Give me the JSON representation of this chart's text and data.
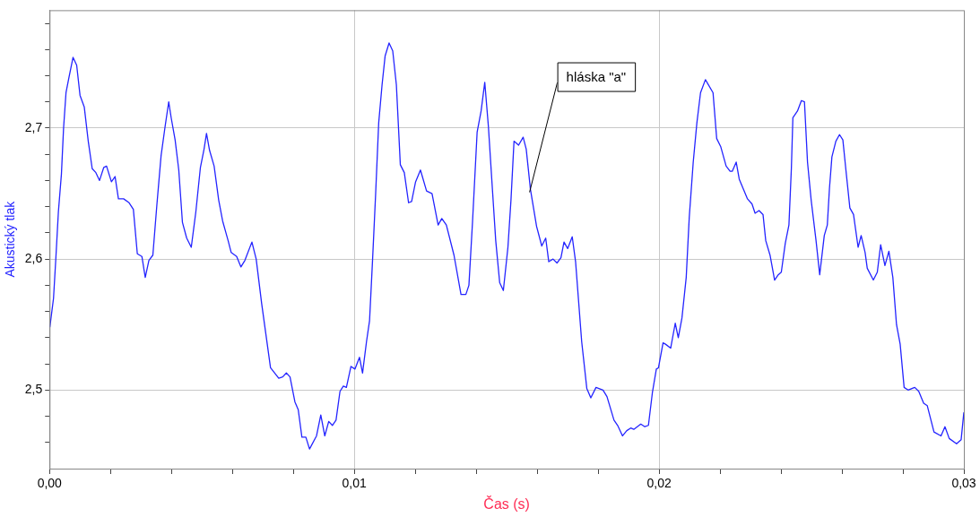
{
  "chart_data": {
    "type": "line",
    "xlabel": "Čas (s)",
    "ylabel": "Akustický tlak",
    "x": [
      1e-05,
      0.00013,
      0.00021,
      0.00029,
      0.00039,
      0.00046,
      0.00054,
      0.00064,
      0.00077,
      0.00089,
      0.001,
      0.00114,
      0.00127,
      0.0014,
      0.00152,
      0.00164,
      0.00178,
      0.00187,
      0.00203,
      0.00215,
      0.00226,
      0.00243,
      0.00261,
      0.00275,
      0.00288,
      0.00303,
      0.00314,
      0.00326,
      0.00339,
      0.00352,
      0.00366,
      0.00379,
      0.00391,
      0.00399,
      0.00412,
      0.00424,
      0.00436,
      0.0045,
      0.00465,
      0.0048,
      0.00495,
      0.00507,
      0.00515,
      0.00525,
      0.0054,
      0.00555,
      0.00568,
      0.00586,
      0.00596,
      0.00614,
      0.00628,
      0.00641,
      0.00664,
      0.00678,
      0.00696,
      0.00712,
      0.00725,
      0.00752,
      0.00765,
      0.00777,
      0.00789,
      0.00805,
      0.00816,
      0.00828,
      0.00841,
      0.00853,
      0.00876,
      0.0089,
      0.00903,
      0.00916,
      0.00928,
      0.0094,
      0.00953,
      0.00964,
      0.00974,
      0.00989,
      0.01002,
      0.01017,
      0.01027,
      0.0104,
      0.0105,
      0.0106,
      0.0107,
      0.0108,
      0.01091,
      0.01101,
      0.01114,
      0.01126,
      0.01138,
      0.01151,
      0.01164,
      0.01178,
      0.01188,
      0.01201,
      0.01217,
      0.01237,
      0.01255,
      0.01275,
      0.01287,
      0.01302,
      0.01327,
      0.0135,
      0.01366,
      0.01376,
      0.01388,
      0.01403,
      0.01416,
      0.01428,
      0.0144,
      0.01454,
      0.01464,
      0.01477,
      0.01489,
      0.01504,
      0.01514,
      0.01524,
      0.01539,
      0.01554,
      0.01564,
      0.01578,
      0.01598,
      0.01615,
      0.01628,
      0.01638,
      0.01652,
      0.01665,
      0.01678,
      0.01688,
      0.017,
      0.01715,
      0.01726,
      0.01746,
      0.01763,
      0.01776,
      0.01793,
      0.01816,
      0.01829,
      0.01852,
      0.01864,
      0.0188,
      0.01894,
      0.01907,
      0.01917,
      0.0194,
      0.01953,
      0.01965,
      0.01978,
      0.01991,
      0.01998,
      0.02013,
      0.02021,
      0.02038,
      0.02053,
      0.02063,
      0.02075,
      0.02089,
      0.02099,
      0.02112,
      0.02124,
      0.02136,
      0.02152,
      0.02177,
      0.02189,
      0.02202,
      0.0222,
      0.02233,
      0.0224,
      0.02253,
      0.02263,
      0.0229,
      0.02305,
      0.02315,
      0.02328,
      0.02341,
      0.0235,
      0.02364,
      0.02379,
      0.02391,
      0.02401,
      0.02414,
      0.02426,
      0.02434,
      0.02439,
      0.02454,
      0.02467,
      0.02477,
      0.02487,
      0.02499,
      0.02515,
      0.02527,
      0.02542,
      0.02552,
      0.02559,
      0.02567,
      0.0258,
      0.02592,
      0.02603,
      0.02613,
      0.02626,
      0.02638,
      0.02653,
      0.02663,
      0.02676,
      0.02683,
      0.02703,
      0.02716,
      0.02727,
      0.02741,
      0.02754,
      0.02767,
      0.02779,
      0.02791,
      0.02804,
      0.02817,
      0.02839,
      0.02852,
      0.02868,
      0.0288,
      0.02902,
      0.02925,
      0.02938,
      0.02952,
      0.02976,
      0.02991,
      0.03
    ],
    "series": [
      {
        "color": "#2424ff",
        "values": [
          2.548,
          2.57,
          2.602,
          2.636,
          2.665,
          2.7,
          2.727,
          2.739,
          2.754,
          2.748,
          2.725,
          2.716,
          2.69,
          2.669,
          2.666,
          2.66,
          2.67,
          2.671,
          2.659,
          2.663,
          2.646,
          2.646,
          2.643,
          2.638,
          2.604,
          2.602,
          2.586,
          2.599,
          2.603,
          2.641,
          2.679,
          2.701,
          2.72,
          2.708,
          2.691,
          2.668,
          2.628,
          2.616,
          2.609,
          2.636,
          2.67,
          2.684,
          2.696,
          2.683,
          2.671,
          2.645,
          2.629,
          2.614,
          2.605,
          2.602,
          2.594,
          2.599,
          2.613,
          2.6,
          2.566,
          2.539,
          2.517,
          2.509,
          2.51,
          2.513,
          2.51,
          2.491,
          2.485,
          2.464,
          2.464,
          2.455,
          2.465,
          2.481,
          2.465,
          2.476,
          2.473,
          2.477,
          2.499,
          2.503,
          2.502,
          2.518,
          2.516,
          2.525,
          2.513,
          2.537,
          2.553,
          2.6,
          2.65,
          2.704,
          2.733,
          2.755,
          2.765,
          2.759,
          2.733,
          2.672,
          2.666,
          2.643,
          2.644,
          2.659,
          2.668,
          2.652,
          2.65,
          2.626,
          2.631,
          2.626,
          2.603,
          2.573,
          2.573,
          2.58,
          2.629,
          2.697,
          2.713,
          2.735,
          2.701,
          2.65,
          2.614,
          2.582,
          2.576,
          2.609,
          2.645,
          2.69,
          2.687,
          2.693,
          2.684,
          2.653,
          2.625,
          2.61,
          2.616,
          2.598,
          2.6,
          2.597,
          2.601,
          2.613,
          2.608,
          2.617,
          2.598,
          2.537,
          2.501,
          2.494,
          2.502,
          2.5,
          2.495,
          2.477,
          2.473,
          2.465,
          2.469,
          2.471,
          2.47,
          2.474,
          2.472,
          2.473,
          2.498,
          2.516,
          2.517,
          2.536,
          2.535,
          2.532,
          2.551,
          2.54,
          2.555,
          2.586,
          2.632,
          2.674,
          2.704,
          2.727,
          2.737,
          2.727,
          2.692,
          2.686,
          2.671,
          2.667,
          2.667,
          2.674,
          2.661,
          2.646,
          2.642,
          2.635,
          2.637,
          2.634,
          2.614,
          2.603,
          2.584,
          2.588,
          2.59,
          2.612,
          2.626,
          2.669,
          2.708,
          2.713,
          2.721,
          2.72,
          2.674,
          2.645,
          2.614,
          2.588,
          2.618,
          2.626,
          2.654,
          2.678,
          2.69,
          2.695,
          2.691,
          2.668,
          2.639,
          2.634,
          2.609,
          2.618,
          2.605,
          2.593,
          2.584,
          2.59,
          2.611,
          2.595,
          2.606,
          2.586,
          2.55,
          2.535,
          2.502,
          2.5,
          2.502,
          2.499,
          2.49,
          2.488,
          2.468,
          2.465,
          2.472,
          2.463,
          2.459,
          2.462,
          2.483
        ]
      }
    ],
    "xlim": [
      0,
      0.03
    ],
    "xticks": [
      {
        "value": 0,
        "label": "0,00"
      },
      {
        "value": 0.002,
        "label": null
      },
      {
        "value": 0.004,
        "label": null
      },
      {
        "value": 0.006,
        "label": null
      },
      {
        "value": 0.008,
        "label": null
      },
      {
        "value": 0.01,
        "label": "0,01"
      },
      {
        "value": 0.012,
        "label": null
      },
      {
        "value": 0.014,
        "label": null
      },
      {
        "value": 0.016,
        "label": null
      },
      {
        "value": 0.018,
        "label": null
      },
      {
        "value": 0.02,
        "label": "0,02"
      },
      {
        "value": 0.022,
        "label": null
      },
      {
        "value": 0.024,
        "label": null
      },
      {
        "value": 0.026,
        "label": null
      },
      {
        "value": 0.028,
        "label": null
      },
      {
        "value": 0.03,
        "label": "0,03"
      }
    ],
    "ylim": [
      2.44,
      2.79
    ],
    "yticks": [
      {
        "value": 2.46,
        "label": null
      },
      {
        "value": 2.48,
        "label": null
      },
      {
        "value": 2.5,
        "label": "2,5"
      },
      {
        "value": 2.52,
        "label": null
      },
      {
        "value": 2.54,
        "label": null
      },
      {
        "value": 2.56,
        "label": null
      },
      {
        "value": 2.58,
        "label": null
      },
      {
        "value": 2.6,
        "label": "2,6"
      },
      {
        "value": 2.62,
        "label": null
      },
      {
        "value": 2.64,
        "label": null
      },
      {
        "value": 2.66,
        "label": null
      },
      {
        "value": 2.68,
        "label": null
      },
      {
        "value": 2.7,
        "label": "2,7"
      },
      {
        "value": 2.72,
        "label": null
      },
      {
        "value": 2.74,
        "label": null
      },
      {
        "value": 2.76,
        "label": null
      },
      {
        "value": 2.78,
        "label": null
      }
    ],
    "grid": true,
    "legend": false,
    "marker": "none",
    "line_style": "solid",
    "annotations": [
      {
        "text": "hláska \"a\"",
        "x": 0.01575,
        "y": 2.651
      }
    ]
  }
}
